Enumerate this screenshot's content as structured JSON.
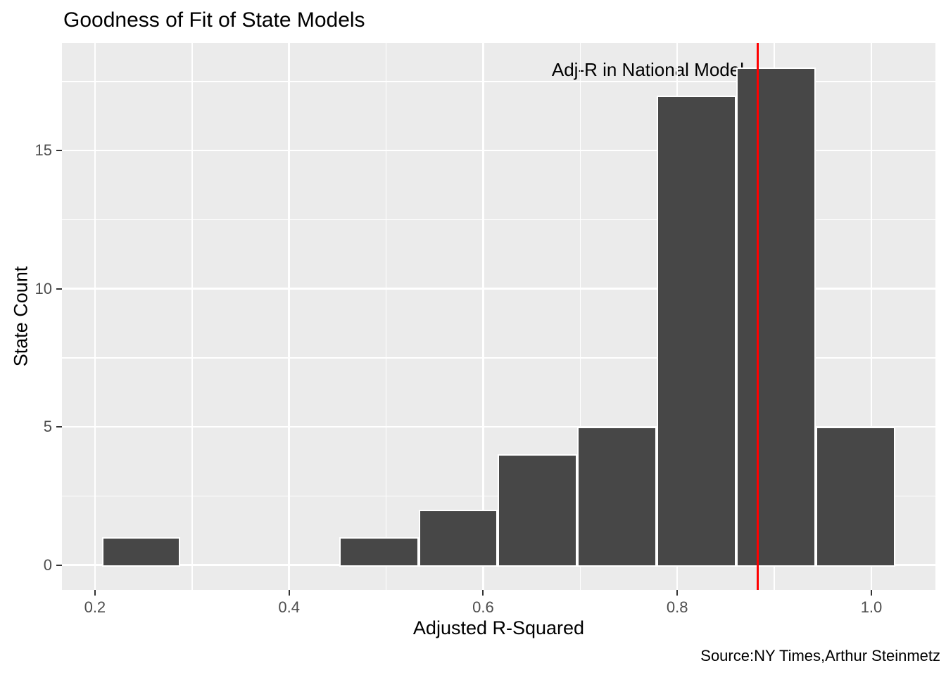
{
  "title": "Goodness of Fit of State Models",
  "caption": "Source:NY Times,Arthur Steinmetz",
  "chart_data": {
    "type": "bar",
    "subtype": "histogram",
    "title": "Goodness of Fit of State Models",
    "xlabel": "Adjusted R-Squared",
    "ylabel": "State Count",
    "bin_edges": [
      0.207,
      0.288,
      0.37,
      0.452,
      0.534,
      0.615,
      0.697,
      0.779,
      0.861,
      0.943,
      1.025
    ],
    "counts": [
      1,
      0,
      0,
      1,
      2,
      4,
      5,
      17,
      18,
      5
    ],
    "x_ticks": [
      0.2,
      0.4,
      0.6,
      0.8,
      1.0
    ],
    "x_tick_labels": [
      "0.2",
      "0.4",
      "0.6",
      "0.8",
      "1.0"
    ],
    "y_ticks": [
      0,
      5,
      10,
      15
    ],
    "y_tick_labels": [
      "0",
      "5",
      "10",
      "15"
    ],
    "x_minor_gridlines": [
      0.3,
      0.5,
      0.7,
      0.9
    ],
    "y_minor_gridlines": [
      2.5,
      7.5,
      12.5,
      17.5
    ],
    "xlim": [
      0.166,
      1.066
    ],
    "ylim": [
      -0.9,
      18.9
    ],
    "vline_x": 0.883,
    "vline_color": "#FF0000",
    "annotation_text": "Adj-R in National Model",
    "bar_fill": "#474747",
    "bar_stroke": "#FFFFFF",
    "panel_background": "#EBEBEB",
    "grid_color": "#FFFFFF",
    "grid": "on",
    "legend_position": "none"
  }
}
